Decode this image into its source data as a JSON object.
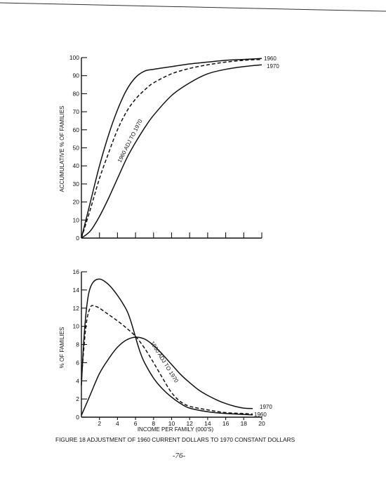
{
  "figure": {
    "caption": "FIGURE 18  ADJUSTMENT OF 1960 CURRENT DOLLARS TO 1970 CONSTANT DOLLARS",
    "page_number": "-76-"
  },
  "chart_data": [
    {
      "type": "line",
      "ylabel": "ACCUMULATIVE % OF FAMILIES",
      "xlabel": "",
      "ylim": [
        0,
        100
      ],
      "xlim": [
        0,
        20
      ],
      "y_ticks": [
        "0",
        "10",
        "20",
        "30",
        "40",
        "50",
        "60",
        "70",
        "80",
        "90",
        "100"
      ],
      "x_tick_positions": [
        0,
        2,
        4,
        6,
        8,
        10,
        12,
        14,
        16,
        18,
        20
      ],
      "series": [
        {
          "name": "1960",
          "dash": false,
          "points": [
            [
              0,
              0
            ],
            [
              1,
              20
            ],
            [
              2,
              40
            ],
            [
              3,
              57
            ],
            [
              4,
              71
            ],
            [
              5,
              82
            ],
            [
              6,
              89
            ],
            [
              7,
              92.5
            ],
            [
              8,
              93.5
            ],
            [
              10,
              95
            ],
            [
              12,
              96.5
            ],
            [
              14,
              97.5
            ],
            [
              16,
              98.5
            ],
            [
              18,
              99
            ],
            [
              20,
              99.5
            ]
          ]
        },
        {
          "name": "1960 ADJ TO 1970",
          "dash": true,
          "points": [
            [
              0,
              0
            ],
            [
              1,
              16
            ],
            [
              2,
              33
            ],
            [
              3,
              47
            ],
            [
              4,
              60
            ],
            [
              5,
              70
            ],
            [
              6,
              77
            ],
            [
              7,
              82
            ],
            [
              8,
              86
            ],
            [
              10,
              91
            ],
            [
              12,
              94
            ],
            [
              14,
              96
            ],
            [
              16,
              97.5
            ],
            [
              18,
              98.5
            ],
            [
              20,
              99
            ]
          ]
        },
        {
          "name": "1970",
          "dash": false,
          "points": [
            [
              0,
              0
            ],
            [
              1,
              4
            ],
            [
              2,
              12
            ],
            [
              3,
              22
            ],
            [
              4,
              33
            ],
            [
              5,
              44
            ],
            [
              6,
              53
            ],
            [
              7,
              61
            ],
            [
              8,
              68
            ],
            [
              10,
              79
            ],
            [
              12,
              86
            ],
            [
              14,
              91
            ],
            [
              16,
              93.5
            ],
            [
              18,
              95
            ],
            [
              20,
              96
            ]
          ]
        }
      ]
    },
    {
      "type": "line",
      "ylabel": "% OF FAMILIES",
      "xlabel": "INCOME PER FAMILY (000'S)",
      "ylim": [
        0,
        16
      ],
      "xlim": [
        0,
        20
      ],
      "y_ticks": [
        "0",
        "2",
        "4",
        "6",
        "8",
        "10",
        "12",
        "14",
        "16"
      ],
      "x_ticks": [
        "2",
        "4",
        "6",
        "8",
        "10",
        "12",
        "14",
        "16",
        "18",
        "20"
      ],
      "x_tick_positions": [
        2,
        4,
        6,
        8,
        10,
        12,
        14,
        16,
        18,
        20
      ],
      "series": [
        {
          "name": "1960",
          "dash": false,
          "points": [
            [
              0,
              3.5
            ],
            [
              0.3,
              9
            ],
            [
              0.7,
              13
            ],
            [
              1.2,
              14.7
            ],
            [
              2,
              15.2
            ],
            [
              3,
              14.6
            ],
            [
              4,
              13.4
            ],
            [
              5,
              11.8
            ],
            [
              5.5,
              10.5
            ],
            [
              6,
              8.8
            ],
            [
              6.5,
              7.2
            ],
            [
              7,
              6
            ],
            [
              8,
              4.3
            ],
            [
              9,
              3.1
            ],
            [
              10,
              2.2
            ],
            [
              11,
              1.5
            ],
            [
              12,
              1
            ],
            [
              14,
              0.6
            ],
            [
              16,
              0.4
            ],
            [
              18,
              0.3
            ],
            [
              19,
              0.25
            ]
          ]
        },
        {
          "name": "1960 ADJ TO 1970",
          "dash": true,
          "points": [
            [
              0,
              4.2
            ],
            [
              0.5,
              10
            ],
            [
              1,
              12.1
            ],
            [
              1.5,
              12.2
            ],
            [
              2,
              12
            ],
            [
              3,
              11.3
            ],
            [
              4,
              10.6
            ],
            [
              5,
              9.8
            ],
            [
              6,
              8.9
            ],
            [
              7,
              7.6
            ],
            [
              8,
              6
            ],
            [
              9,
              4.3
            ],
            [
              10,
              2.7
            ],
            [
              11,
              1.7
            ],
            [
              12,
              1.2
            ],
            [
              14,
              0.8
            ],
            [
              16,
              0.5
            ],
            [
              18,
              0.4
            ],
            [
              19,
              0.35
            ]
          ]
        },
        {
          "name": "1970",
          "dash": false,
          "points": [
            [
              0,
              0.2
            ],
            [
              1,
              2.5
            ],
            [
              2,
              4.8
            ],
            [
              3,
              6.4
            ],
            [
              4,
              7.7
            ],
            [
              5,
              8.5
            ],
            [
              6,
              8.8
            ],
            [
              7,
              8.6
            ],
            [
              8,
              7.9
            ],
            [
              9,
              6.9
            ],
            [
              10,
              5.8
            ],
            [
              11,
              4.7
            ],
            [
              12,
              3.8
            ],
            [
              13,
              3
            ],
            [
              14,
              2.4
            ],
            [
              15,
              1.9
            ],
            [
              16,
              1.5
            ],
            [
              17,
              1.2
            ],
            [
              18,
              1
            ],
            [
              19,
              0.95
            ]
          ]
        }
      ]
    }
  ]
}
